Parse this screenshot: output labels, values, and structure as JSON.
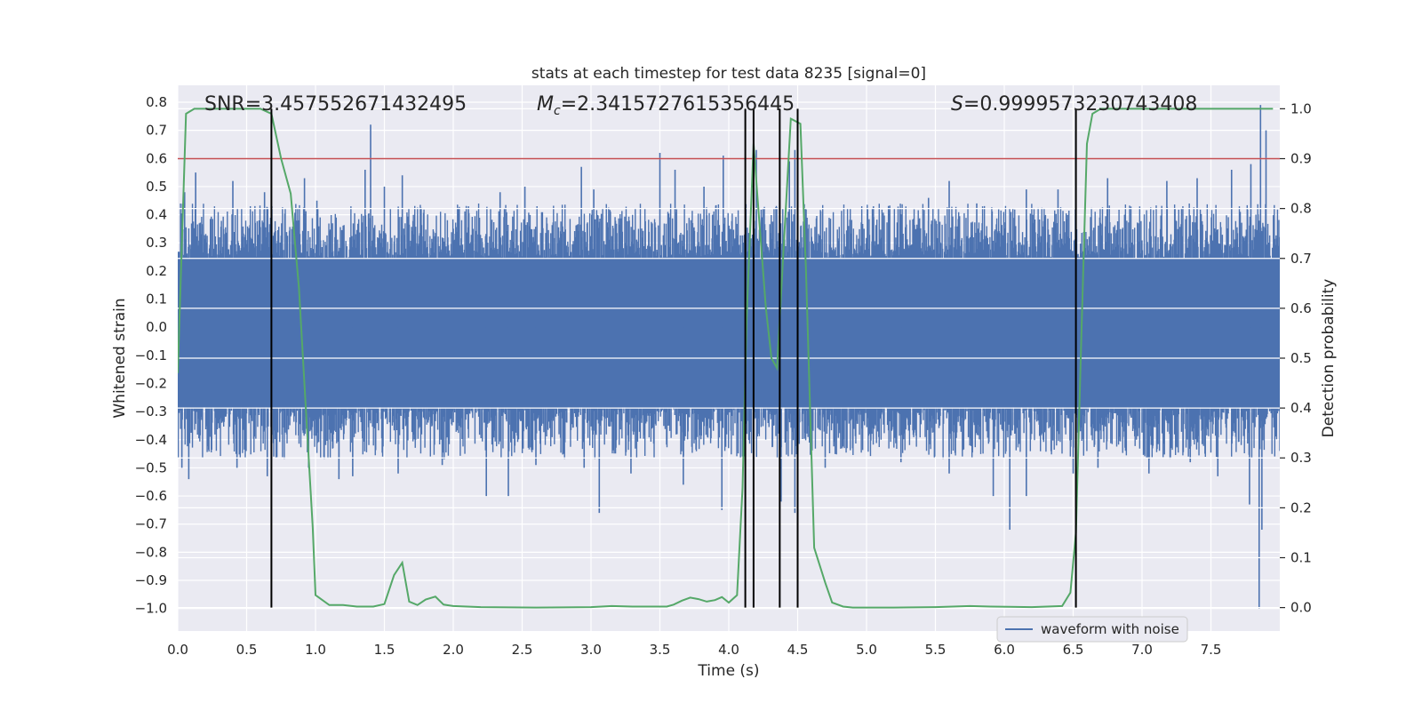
{
  "chart_data": {
    "type": "line",
    "title": "stats at each timestep for test data 8235 [signal=0]",
    "xlabel": "Time (s)",
    "ylabel": "Whitened strain",
    "y2label": "Detection probability",
    "xlim": [
      0.0,
      8.0
    ],
    "ylim": [
      -1.08,
      0.86
    ],
    "y2lim": [
      -0.047,
      1.047
    ],
    "xticks": [
      0.0,
      0.5,
      1.0,
      1.5,
      2.0,
      2.5,
      3.0,
      3.5,
      4.0,
      4.5,
      5.0,
      5.5,
      6.0,
      6.5,
      7.0,
      7.5
    ],
    "xtick_labels": [
      "0.0",
      "0.5",
      "1.0",
      "1.5",
      "2.0",
      "2.5",
      "3.0",
      "3.5",
      "4.0",
      "4.5",
      "5.0",
      "5.5",
      "6.0",
      "6.5",
      "7.0",
      "7.5"
    ],
    "yticks": [
      0.8,
      0.7,
      0.6,
      0.5,
      0.4,
      0.3,
      0.2,
      0.1,
      0.0,
      -0.1,
      -0.2,
      -0.3,
      -0.4,
      -0.5,
      -0.6,
      -0.7,
      -0.8,
      -0.9,
      -1.0
    ],
    "ytick_labels": [
      "0.8",
      "0.7",
      "0.6",
      "0.5",
      "0.4",
      "0.3",
      "0.2",
      "0.1",
      "0.0",
      "−0.1",
      "−0.2",
      "−0.3",
      "−0.4",
      "−0.5",
      "−0.6",
      "−0.7",
      "−0.8",
      "−0.9",
      "−1.0"
    ],
    "y2ticks": [
      1.0,
      0.9,
      0.8,
      0.7,
      0.6,
      0.5,
      0.4,
      0.3,
      0.2,
      0.1,
      0.0
    ],
    "y2tick_labels": [
      "1.0",
      "0.9",
      "0.8",
      "0.7",
      "0.6",
      "0.5",
      "0.4",
      "0.3",
      "0.2",
      "0.1",
      "0.0"
    ],
    "legend": {
      "label": "waveform with noise",
      "location": "lower right"
    },
    "annotations": {
      "snr": "SNR=3.457552671432495",
      "mc_symbol": "M",
      "mc_sub": "c",
      "mc_value": "=2.3415727615356445",
      "s_symbol": "S",
      "s_value": "=0.9999573230743408"
    },
    "threshold": {
      "value": 0.9,
      "axis": "right",
      "color": "#c44e52"
    },
    "vlines": [
      0.68,
      4.12,
      4.18,
      4.37,
      4.5,
      6.52
    ],
    "waveform": {
      "name": "waveform with noise",
      "color": "#4c72b0",
      "duration": 8.0,
      "spikes_up": [
        [
          0.05,
          0.48
        ],
        [
          0.13,
          0.55
        ],
        [
          0.4,
          0.52
        ],
        [
          0.63,
          0.48
        ],
        [
          0.92,
          0.53
        ],
        [
          1.01,
          0.45
        ],
        [
          1.36,
          0.56
        ],
        [
          1.4,
          0.72
        ],
        [
          1.5,
          0.5
        ],
        [
          1.63,
          0.54
        ],
        [
          2.11,
          0.43
        ],
        [
          2.34,
          0.48
        ],
        [
          2.52,
          0.5
        ],
        [
          2.93,
          0.57
        ],
        [
          3.02,
          0.49
        ],
        [
          3.5,
          0.62
        ],
        [
          3.61,
          0.56
        ],
        [
          3.82,
          0.5
        ],
        [
          3.96,
          0.61
        ],
        [
          4.2,
          0.63
        ],
        [
          4.44,
          0.59
        ],
        [
          4.48,
          0.63
        ],
        [
          5.05,
          0.43
        ],
        [
          5.45,
          0.46
        ],
        [
          5.6,
          0.52
        ],
        [
          5.8,
          0.44
        ],
        [
          6.16,
          0.49
        ],
        [
          6.39,
          0.49
        ],
        [
          6.52,
          0.7
        ],
        [
          6.75,
          0.53
        ],
        [
          7.18,
          0.52
        ],
        [
          7.4,
          0.53
        ],
        [
          7.65,
          0.56
        ],
        [
          7.79,
          0.58
        ],
        [
          7.86,
          0.79
        ],
        [
          7.9,
          0.7
        ]
      ],
      "spikes_down": [
        [
          0.03,
          -0.5
        ],
        [
          0.08,
          -0.54
        ],
        [
          0.43,
          -0.5
        ],
        [
          0.65,
          -0.53
        ],
        [
          0.95,
          -0.5
        ],
        [
          1.17,
          -0.54
        ],
        [
          1.27,
          -0.53
        ],
        [
          1.6,
          -0.52
        ],
        [
          1.92,
          -0.49
        ],
        [
          2.24,
          -0.6
        ],
        [
          2.4,
          -0.6
        ],
        [
          2.6,
          -0.49
        ],
        [
          2.95,
          -0.5
        ],
        [
          3.06,
          -0.66
        ],
        [
          3.29,
          -0.52
        ],
        [
          3.67,
          -0.56
        ],
        [
          3.95,
          -0.65
        ],
        [
          4.38,
          -0.62
        ],
        [
          4.48,
          -0.66
        ],
        [
          4.7,
          -0.5
        ],
        [
          5.25,
          -0.48
        ],
        [
          5.6,
          -0.52
        ],
        [
          5.92,
          -0.6
        ],
        [
          6.04,
          -0.72
        ],
        [
          6.16,
          -0.6
        ],
        [
          6.5,
          -0.52
        ],
        [
          6.68,
          -0.5
        ],
        [
          7.05,
          -0.52
        ],
        [
          7.35,
          -0.48
        ],
        [
          7.55,
          -0.53
        ],
        [
          7.78,
          -0.63
        ],
        [
          7.85,
          -1.0
        ],
        [
          7.87,
          -0.72
        ]
      ]
    },
    "probability": {
      "color": "#55a868",
      "points": [
        [
          0.0,
          0.47
        ],
        [
          0.06,
          0.99
        ],
        [
          0.12,
          1.0
        ],
        [
          0.3,
          1.0
        ],
        [
          0.5,
          1.0
        ],
        [
          0.6,
          1.0
        ],
        [
          0.68,
          0.99
        ],
        [
          0.75,
          0.9
        ],
        [
          0.82,
          0.83
        ],
        [
          0.88,
          0.64
        ],
        [
          0.94,
          0.35
        ],
        [
          0.98,
          0.16
        ],
        [
          1.0,
          0.025
        ],
        [
          1.1,
          0.005
        ],
        [
          1.2,
          0.005
        ],
        [
          1.3,
          0.002
        ],
        [
          1.42,
          0.002
        ],
        [
          1.5,
          0.007
        ],
        [
          1.57,
          0.065
        ],
        [
          1.63,
          0.09
        ],
        [
          1.68,
          0.012
        ],
        [
          1.74,
          0.005
        ],
        [
          1.8,
          0.016
        ],
        [
          1.87,
          0.022
        ],
        [
          1.93,
          0.006
        ],
        [
          2.0,
          0.003
        ],
        [
          2.2,
          0.001
        ],
        [
          2.6,
          0.0
        ],
        [
          3.0,
          0.001
        ],
        [
          3.15,
          0.003
        ],
        [
          3.3,
          0.002
        ],
        [
          3.55,
          0.002
        ],
        [
          3.6,
          0.006
        ],
        [
          3.66,
          0.014
        ],
        [
          3.72,
          0.02
        ],
        [
          3.78,
          0.017
        ],
        [
          3.84,
          0.012
        ],
        [
          3.9,
          0.015
        ],
        [
          3.95,
          0.021
        ],
        [
          4.0,
          0.01
        ],
        [
          4.06,
          0.025
        ],
        [
          4.1,
          0.24
        ],
        [
          4.13,
          0.58
        ],
        [
          4.18,
          0.93
        ],
        [
          4.22,
          0.78
        ],
        [
          4.27,
          0.6
        ],
        [
          4.31,
          0.5
        ],
        [
          4.35,
          0.48
        ],
        [
          4.4,
          0.73
        ],
        [
          4.45,
          0.98
        ],
        [
          4.52,
          0.97
        ],
        [
          4.56,
          0.68
        ],
        [
          4.62,
          0.12
        ],
        [
          4.7,
          0.05
        ],
        [
          4.75,
          0.01
        ],
        [
          4.83,
          0.002
        ],
        [
          4.9,
          0.0
        ],
        [
          5.2,
          0.0
        ],
        [
          5.5,
          0.001
        ],
        [
          5.75,
          0.003
        ],
        [
          5.9,
          0.002
        ],
        [
          6.2,
          0.001
        ],
        [
          6.42,
          0.003
        ],
        [
          6.48,
          0.03
        ],
        [
          6.52,
          0.15
        ],
        [
          6.56,
          0.55
        ],
        [
          6.6,
          0.93
        ],
        [
          6.64,
          0.99
        ],
        [
          6.7,
          1.0
        ],
        [
          7.0,
          1.0
        ],
        [
          7.5,
          1.0
        ],
        [
          7.95,
          1.0
        ]
      ]
    }
  }
}
